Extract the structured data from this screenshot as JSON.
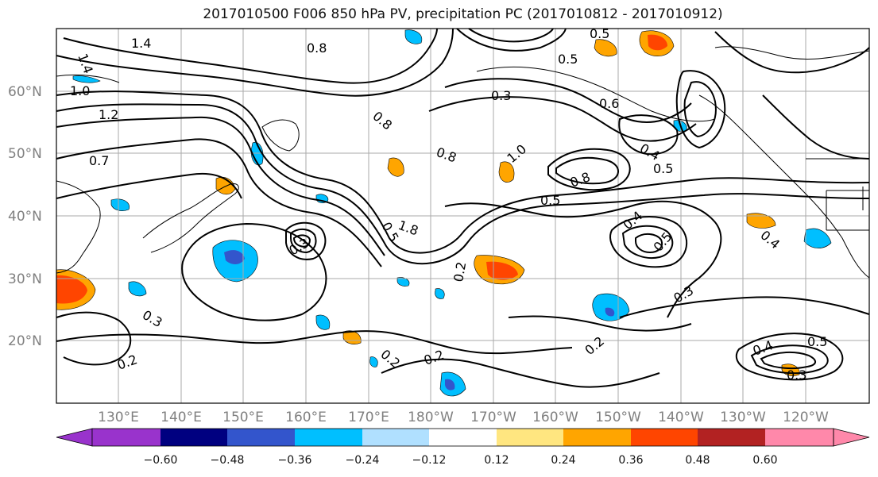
{
  "title": "2017010500 F006 850 hPa PV, precipitation PC (2017010812 - 2017010912)",
  "lat_labels": [
    "60°N",
    "50°N",
    "40°N",
    "30°N",
    "20°N"
  ],
  "lon_labels": [
    "130°E",
    "140°E",
    "150°E",
    "160°E",
    "170°E",
    "180°W",
    "170°W",
    "160°W",
    "150°W",
    "140°W",
    "130°W",
    "120°W"
  ],
  "colorbar": {
    "ticks": [
      "−0.60",
      "−0.48",
      "−0.36",
      "−0.24",
      "−0.12",
      "0.12",
      "0.24",
      "0.36",
      "0.48",
      "0.60"
    ],
    "colors": [
      "#9933cc",
      "#000080",
      "#3355cc",
      "#00bfff",
      "#b0e0ff",
      "#ffffff",
      "#ffe680",
      "#ffa500",
      "#ff4500",
      "#b22222",
      "#ff88aa"
    ]
  },
  "contour_labels": [
    "1.4",
    "1.4",
    "1.0",
    "1.2",
    "0.7",
    "0.8",
    "0.5",
    "0.5",
    "0.5",
    "0.5",
    "0.3",
    "0.6",
    "0.4",
    "0.4",
    "0.5",
    "0.8",
    "0.5",
    "0.4",
    "0.3",
    "0.3",
    "0.2",
    "0.2",
    "0.2",
    "0.2",
    "0.4",
    "0.5",
    "0.3",
    "0.3",
    "0.2",
    "1.0",
    "0.8",
    "0.8",
    "1.8"
  ],
  "map": {
    "coastline_color": "#000000",
    "grid_color": "#aaaaaa",
    "contour_color": "#000000",
    "shading_negative": [
      "#00bfff",
      "#3355cc"
    ],
    "shading_positive": [
      "#ffa500",
      "#ff4500"
    ]
  }
}
